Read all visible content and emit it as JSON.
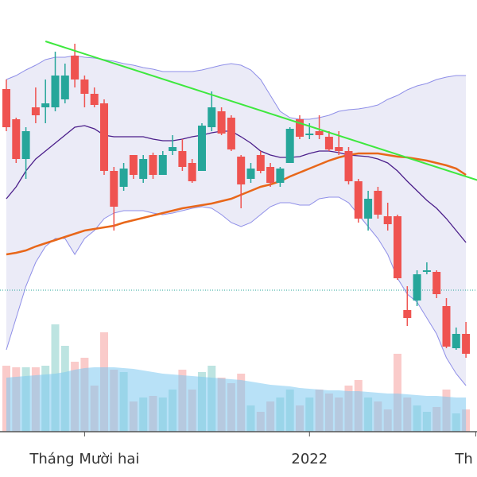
{
  "chart_data": {
    "type": "candlestick",
    "xlim": [
      -0.65,
      48.13
    ],
    "ylim": [
      0,
      543
    ],
    "y2lim": [
      0,
      543
    ],
    "xticks": [
      {
        "value": 8,
        "label": "Tháng Mười hai"
      },
      {
        "value": 31,
        "label": "2022"
      },
      {
        "value": 48,
        "label": "Th"
      }
    ],
    "up_color": "#26a69a",
    "down_color": "#ef5350",
    "open": [
      431,
      393,
      343,
      408,
      408,
      408,
      418,
      473,
      443,
      425,
      413,
      328,
      308,
      348,
      318,
      348,
      323,
      353,
      353,
      338,
      328,
      383,
      403,
      395,
      346,
      318,
      348,
      333,
      313,
      338,
      393,
      373,
      378,
      371,
      358,
      353,
      315,
      268,
      303,
      271,
      271,
      153,
      165,
      201,
      201,
      158,
      105,
      123
    ],
    "high": [
      443,
      395,
      383,
      433,
      443,
      478,
      463,
      488,
      448,
      433,
      418,
      333,
      338,
      348,
      348,
      351,
      353,
      373,
      368,
      343,
      388,
      428,
      408,
      398,
      348,
      338,
      353,
      338,
      333,
      383,
      398,
      388,
      398,
      378,
      378,
      358,
      318,
      303,
      308,
      288,
      273,
      183,
      203,
      213,
      203,
      168,
      131,
      138
    ],
    "low": [
      378,
      338,
      318,
      388,
      388,
      403,
      413,
      433,
      408,
      408,
      323,
      253,
      303,
      318,
      313,
      318,
      323,
      348,
      328,
      313,
      328,
      378,
      373,
      353,
      281,
      313,
      325,
      308,
      308,
      338,
      368,
      368,
      368,
      353,
      348,
      311,
      263,
      253,
      268,
      253,
      191,
      133,
      158,
      198,
      168,
      105,
      103,
      93
    ],
    "close": [
      383,
      343,
      378,
      398,
      413,
      448,
      448,
      443,
      425,
      411,
      328,
      283,
      331,
      323,
      343,
      323,
      348,
      358,
      333,
      315,
      385,
      408,
      375,
      355,
      311,
      331,
      328,
      313,
      331,
      381,
      371,
      375,
      373,
      355,
      353,
      315,
      268,
      293,
      273,
      261,
      193,
      143,
      198,
      203,
      173,
      107,
      123,
      98
    ],
    "volume": {
      "axis": "y2",
      "values": [
        83,
        81,
        81,
        81,
        83,
        135,
        108,
        88,
        93,
        58,
        125,
        78,
        75,
        38,
        43,
        45,
        43,
        53,
        78,
        53,
        75,
        83,
        68,
        61,
        73,
        33,
        25,
        38,
        43,
        53,
        33,
        43,
        53,
        48,
        43,
        58,
        65,
        43,
        38,
        28,
        98,
        43,
        33,
        25,
        31,
        53,
        23,
        28
      ]
    },
    "volume_ma": {
      "axis": "y2",
      "color": "#7ec8f0",
      "values": [
        68,
        69,
        70,
        71,
        72,
        73,
        75,
        78,
        80,
        81,
        81,
        81,
        80,
        79,
        77,
        75,
        73,
        72,
        71,
        70,
        69,
        68,
        67,
        66,
        65,
        63,
        61,
        59,
        58,
        57,
        55,
        54,
        53,
        52,
        52,
        51,
        51,
        50,
        49,
        48,
        48,
        47,
        46,
        45,
        45,
        44,
        43,
        43
      ]
    },
    "bands": {
      "fill": "#e6e6f5",
      "edge_color": "#8f8fe8",
      "mid_color": "#4b1e8a",
      "upper": [
        443,
        448,
        455,
        461,
        468,
        471,
        471,
        473,
        471,
        470,
        468,
        466,
        463,
        461,
        458,
        456,
        453,
        453,
        453,
        453,
        455,
        458,
        461,
        463,
        461,
        455,
        443,
        423,
        403,
        395,
        393,
        393,
        395,
        398,
        403,
        405,
        406,
        408,
        411,
        418,
        423,
        430,
        435,
        438,
        443,
        446,
        448,
        448
      ],
      "middle": [
        293,
        308,
        328,
        343,
        353,
        363,
        373,
        383,
        385,
        381,
        373,
        371,
        371,
        371,
        371,
        368,
        366,
        366,
        368,
        371,
        373,
        376,
        378,
        378,
        371,
        363,
        353,
        348,
        345,
        345,
        346,
        350,
        353,
        353,
        351,
        348,
        347,
        346,
        343,
        338,
        328,
        315,
        303,
        291,
        281,
        268,
        253,
        238
      ],
      "lower": [
        103,
        143,
        183,
        213,
        233,
        243,
        243,
        223,
        243,
        253,
        268,
        275,
        278,
        278,
        278,
        275,
        273,
        275,
        278,
        281,
        283,
        281,
        273,
        263,
        258,
        263,
        273,
        283,
        288,
        288,
        285,
        285,
        293,
        295,
        295,
        288,
        273,
        258,
        243,
        223,
        193,
        173,
        163,
        143,
        123,
        93,
        73,
        58
      ]
    },
    "ema": {
      "color": "#e8671a",
      "values": [
        223,
        225,
        228,
        233,
        237,
        241,
        245,
        249,
        253,
        255,
        257,
        259,
        263,
        266,
        269,
        272,
        275,
        278,
        281,
        283,
        285,
        287,
        290,
        293,
        298,
        303,
        308,
        311,
        315,
        321,
        326,
        331,
        336,
        341,
        345,
        348,
        350,
        350,
        350,
        348,
        346,
        345,
        343,
        341,
        338,
        335,
        331,
        323
      ]
    },
    "trendline": {
      "color": "#3ee83e",
      "x": [
        4,
        47
      ],
      "values": [
        491,
        321
      ]
    },
    "reference_line": {
      "color": "#26a69a",
      "value": 178
    }
  }
}
